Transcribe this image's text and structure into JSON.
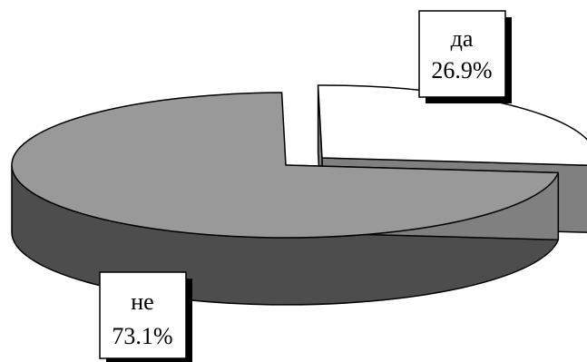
{
  "chart_data": {
    "type": "pie",
    "style": "3d-exploded",
    "slices": [
      {
        "label": "да",
        "value": 26.9,
        "percent_text": "26.9%",
        "color": "#ffffff",
        "exploded": true
      },
      {
        "label": "не",
        "value": 73.1,
        "percent_text": "73.1%",
        "color": "#999999",
        "exploded": false
      }
    ],
    "side_colors": {
      "да": "#808080",
      "не": "#4d4d4d"
    },
    "outline_color": "#000000",
    "shadow_color": "#000000",
    "title": "",
    "legend": "none",
    "label_style": "boxed-with-shadow"
  }
}
